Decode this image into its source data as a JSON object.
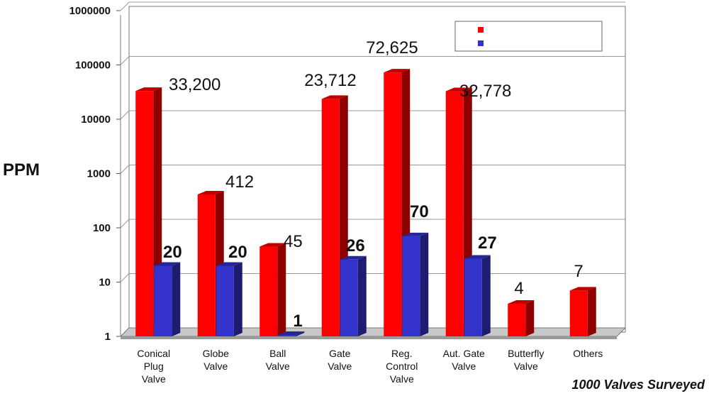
{
  "chart_data": {
    "type": "bar",
    "ylabel": "PPM",
    "yscale": "log",
    "ylim": [
      1,
      1000000
    ],
    "yticks": [
      "1",
      "10",
      "100",
      "1000",
      "10000",
      "100000",
      "1000000"
    ],
    "categories": [
      [
        "Conical",
        "Plug",
        "Valve"
      ],
      [
        "Globe",
        "Valve"
      ],
      [
        "Ball",
        "Valve"
      ],
      [
        "Gate",
        "Valve"
      ],
      [
        "Reg.",
        "Control",
        "Valve"
      ],
      [
        "Aut. Gate",
        "Valve"
      ],
      [
        "Butterfly",
        "Valve"
      ],
      [
        "Others"
      ]
    ],
    "series": [
      {
        "color": "#ff0000",
        "values": [
          33200,
          412,
          45,
          23712,
          72625,
          32778,
          4,
          7
        ],
        "labels": [
          "33,200",
          "412",
          "45",
          "23,712",
          "72,625",
          "32,778",
          "4",
          "7"
        ]
      },
      {
        "color": "#3333cc",
        "values": [
          20,
          20,
          1,
          26,
          70,
          27,
          null,
          null
        ],
        "labels": [
          "20",
          "20",
          "1",
          "26",
          "70",
          "27",
          "",
          ""
        ]
      }
    ],
    "legend_position": "top-right",
    "grid": true,
    "footnote": "1000 Valves Surveyed"
  }
}
